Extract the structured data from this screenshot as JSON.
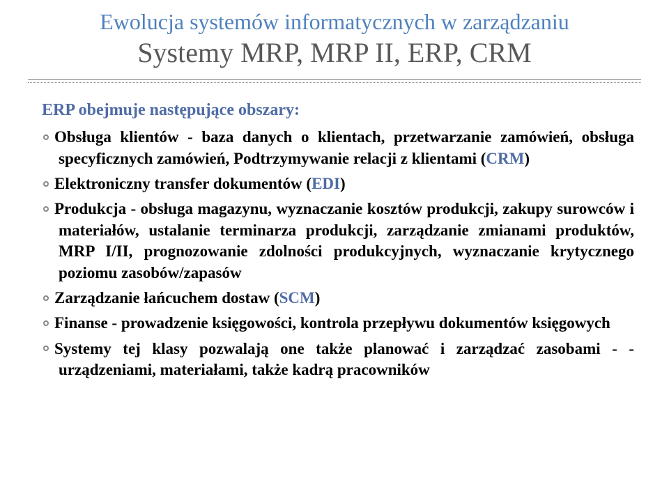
{
  "title": {
    "line1": "Ewolucja systemów informatycznych w zarządzaniu",
    "line2": "Systemy MRP, MRP II, ERP, CRM"
  },
  "intro": "ERP obejmuje następujące obszary:",
  "colors": {
    "title_line1": "#4f81bd",
    "title_line2": "#595959",
    "accent": "#4f6ca5",
    "body": "#000000",
    "divider": "#8a8a8a",
    "bullet_border": "#888888"
  },
  "fonts": {
    "title_line1_size": 32,
    "title_line2_size": 40,
    "body_size": 23,
    "intro_size": 24
  },
  "items": {
    "i0": {
      "pre": "Obsługa klientów - baza danych o klientach, przetwarzanie zamówień, obsługa specyficznych zamówień, Podtrzymywanie relacji z klientami (",
      "accent": "CRM",
      "post": ")"
    },
    "i1": {
      "pre": "Elektroniczny transfer dokumentów (",
      "accent": "EDI",
      "post": ")"
    },
    "i2": {
      "pre": "Produkcja - obsługa magazynu, wyznaczanie kosztów produkcji, zakupy surowców i materiałów, ustalanie terminarza produkcji, zarządzanie zmianami produktów, MRP I/II, prognozowanie zdolności produkcyjnych, wyznaczanie krytycznego poziomu zasobów/zapasów",
      "accent": "",
      "post": ""
    },
    "i3": {
      "pre": "Zarządzanie łańcuchem dostaw (",
      "accent": "SCM",
      "post": ")"
    },
    "i4": {
      "pre": "Finanse - prowadzenie księgowości, kontrola przepływu dokumentów księgowych",
      "accent": "",
      "post": ""
    },
    "i5": {
      "pre": "Systemy tej klasy pozwalają one także planować i zarządzać zasobami - - urządzeniami, materiałami, także kadrą pracowników",
      "accent": "",
      "post": ""
    }
  }
}
